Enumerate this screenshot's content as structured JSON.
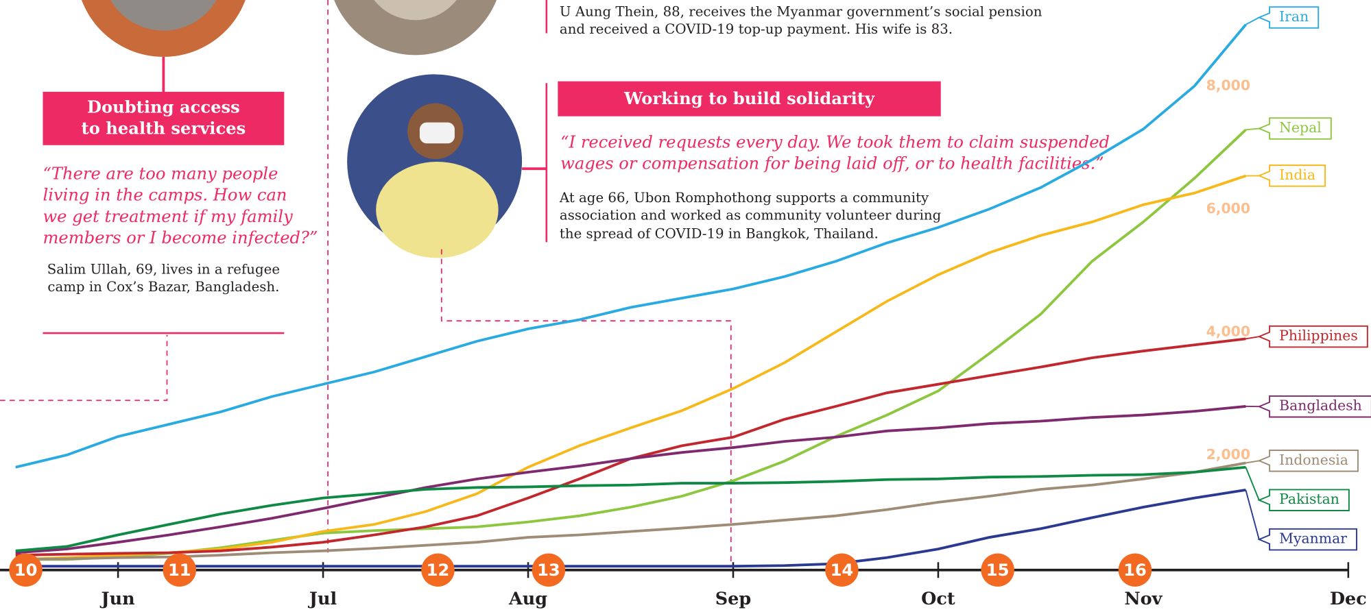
{
  "chart_data": {
    "type": "line",
    "x": [
      5.5,
      5.75,
      6.0,
      6.25,
      6.5,
      6.75,
      7.0,
      7.25,
      7.5,
      7.75,
      8.0,
      8.25,
      8.5,
      8.75,
      9.0,
      9.25,
      9.5,
      9.75,
      10.0,
      10.25,
      10.5,
      10.75,
      11.0,
      11.25,
      11.5
    ],
    "xlim": [
      5.4243,
      12.1108
    ],
    "xticks": [
      {
        "value": 6,
        "label": "Jun"
      },
      {
        "value": 7,
        "label": "Jul"
      },
      {
        "value": 8,
        "label": "Aug"
      },
      {
        "value": 9,
        "label": "Sep"
      },
      {
        "value": 10,
        "label": "Oct"
      },
      {
        "value": 11,
        "label": "Nov"
      },
      {
        "value": 12,
        "label": "Dec"
      }
    ],
    "ylim": [
      0,
      9400
    ],
    "yticks": [
      {
        "value": 2000,
        "label": "2,000"
      },
      {
        "value": 4000,
        "label": "4,000"
      },
      {
        "value": 6000,
        "label": "6,000"
      },
      {
        "value": 8000,
        "label": "8,000"
      }
    ],
    "series": [
      {
        "name": "Iran",
        "color": "#29abe2",
        "values": [
          1800,
          2000,
          2300,
          2500,
          2700,
          2950,
          3150,
          3350,
          3600,
          3850,
          4050,
          4200,
          4400,
          4550,
          4700,
          4900,
          5150,
          5450,
          5700,
          6000,
          6350,
          6800,
          7300,
          8000,
          9000
        ]
      },
      {
        "name": "Nepal",
        "color": "#8dc63f",
        "values": [
          300,
          300,
          340,
          400,
          490,
          610,
          730,
          770,
          800,
          830,
          910,
          1010,
          1150,
          1330,
          1580,
          1900,
          2300,
          2650,
          3040,
          3650,
          4290,
          5150,
          5790,
          6500,
          7290
        ]
      },
      {
        "name": "India",
        "color": "#f7b81a",
        "values": [
          300,
          330,
          370,
          410,
          470,
          580,
          755,
          870,
          1080,
          1370,
          1800,
          2150,
          2440,
          2720,
          3080,
          3500,
          4000,
          4500,
          4930,
          5290,
          5570,
          5790,
          6070,
          6260,
          6540
        ]
      },
      {
        "name": "Philippines",
        "color": "#c1272d",
        "values": [
          370,
          385,
          400,
          410,
          440,
          500,
          580,
          700,
          830,
          1010,
          1300,
          1610,
          1940,
          2150,
          2290,
          2580,
          2790,
          3010,
          3150,
          3290,
          3430,
          3580,
          3690,
          3790,
          3890
        ]
      },
      {
        "name": "Bangladesh",
        "color": "#7f2a6e",
        "values": [
          410,
          470,
          580,
          700,
          830,
          970,
          1130,
          1300,
          1470,
          1610,
          1720,
          1820,
          1940,
          2040,
          2120,
          2220,
          2290,
          2390,
          2440,
          2510,
          2550,
          2610,
          2650,
          2710,
          2790
        ]
      },
      {
        "name": "Indonesia",
        "color": "#9e8c76",
        "values": [
          300,
          310,
          330,
          340,
          370,
          410,
          440,
          480,
          530,
          580,
          660,
          700,
          755,
          810,
          870,
          940,
          1010,
          1110,
          1230,
          1330,
          1440,
          1510,
          1610,
          1720,
          1870
        ]
      },
      {
        "name": "Pakistan",
        "color": "#0f8a45",
        "values": [
          440,
          510,
          700,
          870,
          1040,
          1180,
          1300,
          1370,
          1440,
          1470,
          1480,
          1500,
          1510,
          1540,
          1540,
          1550,
          1570,
          1600,
          1610,
          1640,
          1650,
          1670,
          1680,
          1720,
          1800
        ]
      },
      {
        "name": "Myanmar",
        "color": "#2b3990",
        "values": [
          190,
          190,
          190,
          190,
          190,
          190,
          190,
          190,
          190,
          190,
          190,
          190,
          190,
          190,
          190,
          200,
          230,
          330,
          470,
          660,
          800,
          980,
          1150,
          1300,
          1430
        ]
      }
    ],
    "markers": [
      {
        "x": 5.55,
        "label": "10"
      },
      {
        "x": 6.3,
        "label": "11"
      },
      {
        "x": 7.56,
        "label": "12"
      },
      {
        "x": 8.1,
        "label": "13"
      },
      {
        "x": 9.53,
        "label": "14"
      },
      {
        "x": 10.29,
        "label": "15"
      },
      {
        "x": 10.96,
        "label": "16"
      }
    ]
  },
  "panels": {
    "left": {
      "heading_lines": [
        "Doubting access",
        "to health services"
      ],
      "quote_lines": [
        "“There are too many people",
        "living in the camps. How can",
        "we get treatment if my family",
        "members or I become infected?”"
      ],
      "caption_lines": [
        "Salim Ullah, 69, lives in a refugee",
        "camp in Cox’s Bazar, Bangladesh."
      ]
    },
    "top": {
      "caption_lines": [
        "U Aung Thein, 88, receives the Myanmar government’s social pension",
        "and received a COVID-19 top-up payment. His wife is 83."
      ]
    },
    "middle": {
      "heading": "Working to build solidarity",
      "quote_lines": [
        "“I received requests every day. We took them to claim suspended",
        "wages or compensation for being laid off, or to health facilities.”"
      ],
      "caption_lines": [
        "At age 66, Ubon Romphothong supports a community",
        "association and worked as community volunteer during",
        "the spread of COVID-19 in Bangkok, Thailand."
      ]
    }
  }
}
